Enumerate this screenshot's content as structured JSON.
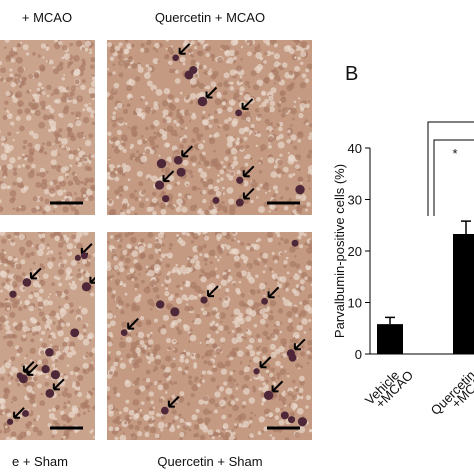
{
  "figure": {
    "panel_label": "B",
    "image_labels": [
      "+ MCAO",
      "Quercetin  + MCAO",
      "e + Sham",
      "Quercetin  + Sham"
    ]
  },
  "chart_data": {
    "type": "bar",
    "y_label": "Parvalbumin-positive cells (%)",
    "categories": [
      [
        "Vehicle",
        "+MCAO"
      ],
      [
        "Quercetin",
        "+MCAO"
      ]
    ],
    "values": [
      5.8,
      23.3
    ],
    "errors": [
      1.3,
      2.5
    ],
    "color": "#000000",
    "ylim": [
      0,
      40
    ],
    "yticks": [
      0,
      10,
      20,
      30,
      40
    ],
    "annotations": [
      "*"
    ]
  }
}
